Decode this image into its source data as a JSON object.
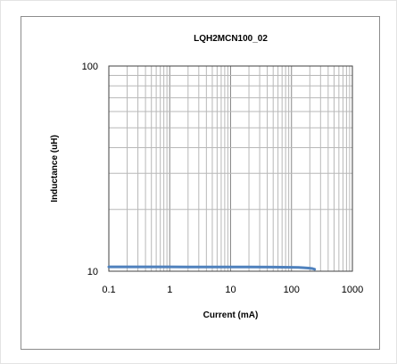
{
  "chart_data": {
    "type": "line",
    "title": "LQH2MCN100_02",
    "xlabel": "Current (mA)",
    "ylabel": "Inductance (uH)",
    "x_scale": "log",
    "y_scale": "log",
    "xlim": [
      0.1,
      1000
    ],
    "ylim": [
      10,
      100
    ],
    "grid": true,
    "x_ticks": [
      "0.1",
      "1",
      "10",
      "100",
      "1000"
    ],
    "y_ticks": [
      "10",
      "100"
    ],
    "series": [
      {
        "color": "#4f81bd",
        "x": [
          0.1,
          0.2,
          0.5,
          1,
          2,
          5,
          10,
          20,
          50,
          100,
          130,
          160,
          190,
          220,
          240
        ],
        "y": [
          10.5,
          10.5,
          10.5,
          10.5,
          10.49,
          10.49,
          10.48,
          10.48,
          10.47,
          10.45,
          10.43,
          10.4,
          10.36,
          10.3,
          10.22
        ]
      }
    ]
  }
}
